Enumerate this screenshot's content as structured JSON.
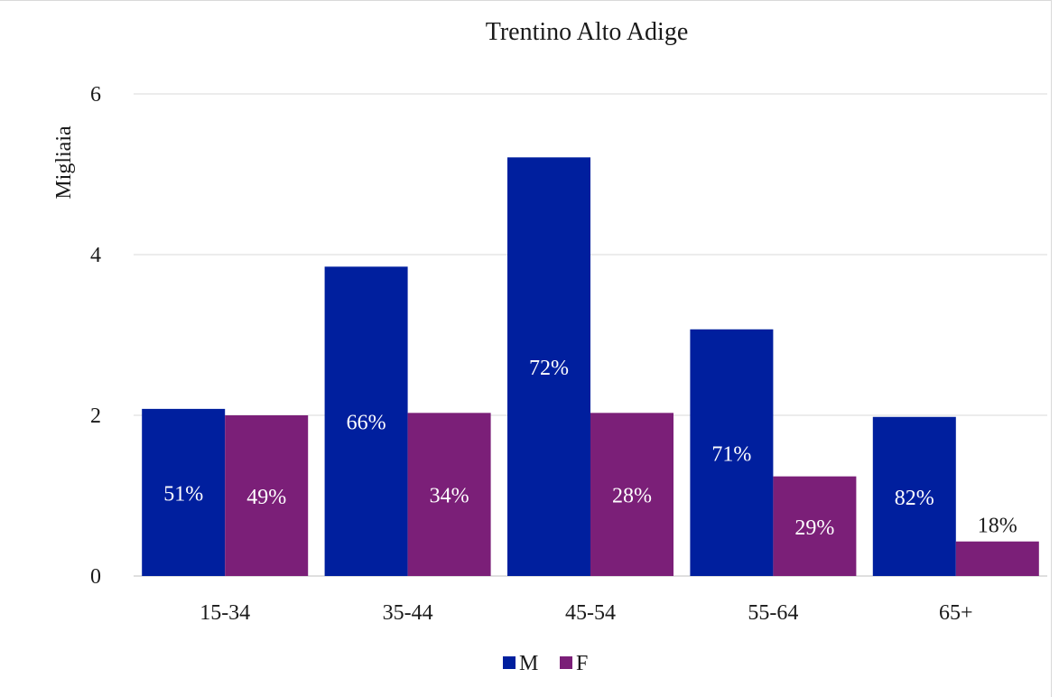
{
  "chart_data": {
    "type": "bar",
    "title": "Trentino Alto Adige",
    "xlabel": "",
    "ylabel": "Migliaia",
    "categories": [
      "15-34",
      "35-44",
      "45-54",
      "55-64",
      "65+"
    ],
    "series": [
      {
        "name": "M",
        "color": "#001f9e",
        "values": [
          2.08,
          3.85,
          5.21,
          3.07,
          1.98
        ],
        "labels": [
          "51%",
          "66%",
          "72%",
          "71%",
          "82%"
        ],
        "label_color": "#ffffff"
      },
      {
        "name": "F",
        "color": "#7b1f78",
        "values": [
          2.0,
          2.03,
          2.03,
          1.24,
          0.43
        ],
        "labels": [
          "49%",
          "34%",
          "28%",
          "29%",
          "18%"
        ],
        "label_color": "#ffffff"
      }
    ],
    "yticks": [
      "0",
      "2",
      "4",
      "6"
    ],
    "ylim": [
      0,
      6
    ],
    "grid": true,
    "legend_position": "bottom"
  }
}
